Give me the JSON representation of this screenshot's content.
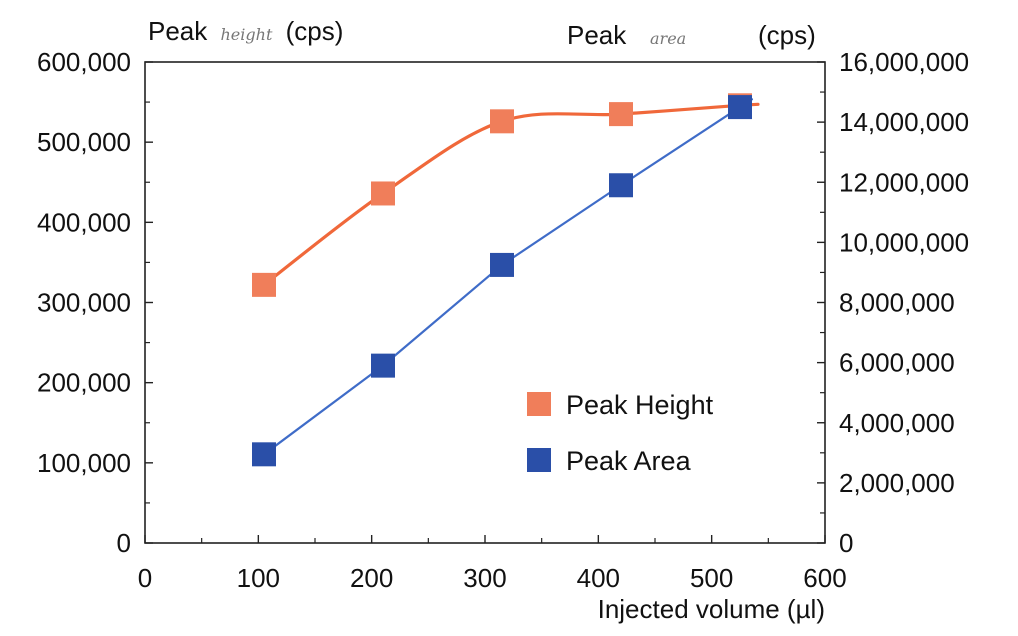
{
  "chart_data": {
    "type": "line",
    "title": "",
    "xlabel": "Injected volume (µl)",
    "xlim": [
      0,
      600
    ],
    "x_ticks": [
      "0",
      "100",
      "200",
      "300",
      "400",
      "500",
      "600"
    ],
    "y_left": {
      "label_prefix": "Peak",
      "label_hand": "height",
      "label_unit": "(cps)",
      "ylim": [
        0,
        600000
      ],
      "ticks": [
        "0",
        "100,000",
        "200,000",
        "300,000",
        "400,000",
        "500,000",
        "600,000"
      ]
    },
    "y_right": {
      "label_prefix": "Peak",
      "label_hand": "area",
      "label_unit": "(cps)",
      "ylim": [
        0,
        16000000
      ],
      "ticks": [
        "0",
        "2,000,000",
        "4,000,000",
        "6,000,000",
        "8,000,000",
        "10,000,000",
        "12,000,000",
        "14,000,000",
        "16,000,000"
      ]
    },
    "series": [
      {
        "name": "Peak Height",
        "axis": "left",
        "color": "#F0683A",
        "marker_color": "#F07E5A",
        "curve": "smooth",
        "x": [
          105,
          210,
          315,
          420,
          525
        ],
        "y": [
          322000,
          436000,
          526000,
          535000,
          546000
        ]
      },
      {
        "name": "Peak Area",
        "axis": "right",
        "color": "#3F6CC8",
        "marker_color": "#2A4FA8",
        "curve": "linear",
        "x": [
          105,
          210,
          315,
          420,
          525
        ],
        "y": [
          2950000,
          5900000,
          9250000,
          11900000,
          14500000
        ]
      }
    ],
    "legend": {
      "placement": "center-right"
    },
    "grid": false
  }
}
